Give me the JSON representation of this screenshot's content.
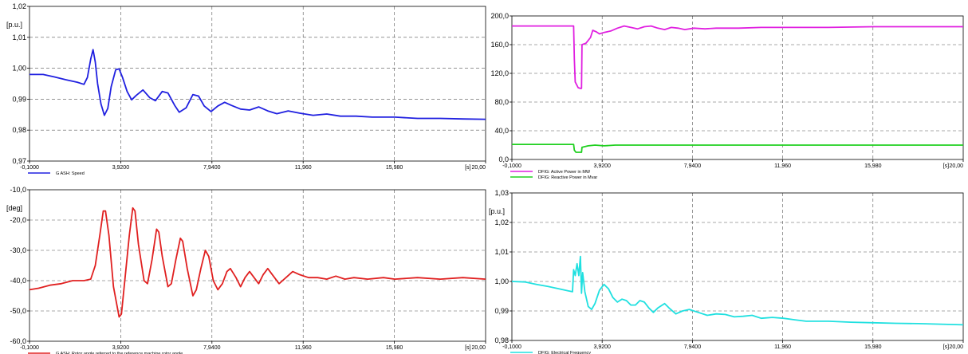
{
  "chart_data": [
    {
      "type": "line",
      "xlim": [
        -0.1,
        20.0
      ],
      "ylim": [
        0.97,
        1.02
      ],
      "xticks": [
        "-0,1000",
        "3,9200",
        "7,9400",
        "11,960",
        "15,980",
        "20,00"
      ],
      "yticks": [
        "0,97",
        "0,98",
        "0,99",
        "1,00",
        "1,01",
        "1,02"
      ],
      "x_unit": "[s]",
      "y_unit": "[p.u.]",
      "grid": true,
      "legend": "bottom-left",
      "series": [
        {
          "name": "G ASH: Speed",
          "color": "#2020e0",
          "points": [
            [
              -0.1,
              0.998
            ],
            [
              0.5,
              0.998
            ],
            [
              1.0,
              0.9972
            ],
            [
              1.5,
              0.9963
            ],
            [
              2.0,
              0.9955
            ],
            [
              2.3,
              0.9948
            ],
            [
              2.45,
              0.997
            ],
            [
              2.6,
              1.003
            ],
            [
              2.7,
              1.006
            ],
            [
              2.8,
              1.002
            ],
            [
              2.9,
              0.995
            ],
            [
              3.05,
              0.9885
            ],
            [
              3.2,
              0.9848
            ],
            [
              3.35,
              0.987
            ],
            [
              3.5,
              0.994
            ],
            [
              3.7,
              0.9995
            ],
            [
              3.85,
              0.9998
            ],
            [
              4.0,
              0.997
            ],
            [
              4.2,
              0.9925
            ],
            [
              4.4,
              0.9898
            ],
            [
              4.6,
              0.9912
            ],
            [
              4.9,
              0.993
            ],
            [
              5.2,
              0.9905
            ],
            [
              5.45,
              0.9895
            ],
            [
              5.75,
              0.9925
            ],
            [
              6.0,
              0.992
            ],
            [
              6.3,
              0.988
            ],
            [
              6.5,
              0.9858
            ],
            [
              6.8,
              0.9872
            ],
            [
              7.1,
              0.9915
            ],
            [
              7.35,
              0.991
            ],
            [
              7.6,
              0.9878
            ],
            [
              7.9,
              0.986
            ],
            [
              8.2,
              0.9878
            ],
            [
              8.5,
              0.989
            ],
            [
              8.8,
              0.988
            ],
            [
              9.2,
              0.9868
            ],
            [
              9.6,
              0.9865
            ],
            [
              10.0,
              0.9875
            ],
            [
              10.4,
              0.9862
            ],
            [
              10.8,
              0.9853
            ],
            [
              11.3,
              0.9862
            ],
            [
              11.8,
              0.9855
            ],
            [
              12.4,
              0.9848
            ],
            [
              13.0,
              0.9852
            ],
            [
              13.6,
              0.9845
            ],
            [
              14.3,
              0.9845
            ],
            [
              15.0,
              0.9842
            ],
            [
              16.0,
              0.9842
            ],
            [
              17.0,
              0.9838
            ],
            [
              18.0,
              0.9838
            ],
            [
              19.0,
              0.9836
            ],
            [
              20.0,
              0.9835
            ]
          ]
        }
      ]
    },
    {
      "type": "line",
      "xlim": [
        -0.1,
        20.0
      ],
      "ylim": [
        0,
        200
      ],
      "xticks": [
        "-0,1000",
        "3,9200",
        "7,9400",
        "11,960",
        "15,980",
        "20,00"
      ],
      "yticks": [
        "0,0",
        "40,0",
        "80,0",
        "120,0",
        "160,0",
        "200,0"
      ],
      "x_unit": "[s]",
      "y_unit": "",
      "grid": true,
      "legend": "bottom-left",
      "series": [
        {
          "name": "DFIG: Active Power in MW",
          "color": "#e020e0",
          "points": [
            [
              -0.1,
              186
            ],
            [
              1.0,
              186
            ],
            [
              2.0,
              186
            ],
            [
              2.65,
              186
            ],
            [
              2.68,
              140
            ],
            [
              2.72,
              108
            ],
            [
              2.85,
              100
            ],
            [
              2.95,
              99
            ],
            [
              3.0,
              99
            ],
            [
              3.02,
              160
            ],
            [
              3.2,
              162
            ],
            [
              3.4,
              170
            ],
            [
              3.5,
              180
            ],
            [
              3.65,
              178
            ],
            [
              3.8,
              175
            ],
            [
              4.0,
              177
            ],
            [
              4.3,
              179
            ],
            [
              4.6,
              183
            ],
            [
              4.9,
              186
            ],
            [
              5.2,
              184
            ],
            [
              5.5,
              182
            ],
            [
              5.8,
              185
            ],
            [
              6.1,
              186
            ],
            [
              6.4,
              183
            ],
            [
              6.7,
              181
            ],
            [
              7.0,
              184
            ],
            [
              7.3,
              183
            ],
            [
              7.6,
              181
            ],
            [
              8.0,
              183
            ],
            [
              8.5,
              182
            ],
            [
              9.0,
              183
            ],
            [
              10.0,
              183
            ],
            [
              11.0,
              184
            ],
            [
              12.0,
              184
            ],
            [
              14.0,
              184
            ],
            [
              16.0,
              185
            ],
            [
              18.0,
              185
            ],
            [
              20.0,
              185
            ]
          ]
        },
        {
          "name": "DFIG: Reactive Power in Mvar",
          "color": "#20d020",
          "points": [
            [
              -0.1,
              21
            ],
            [
              1.0,
              21
            ],
            [
              2.0,
              21
            ],
            [
              2.65,
              21
            ],
            [
              2.68,
              13
            ],
            [
              2.75,
              10
            ],
            [
              3.0,
              10
            ],
            [
              3.02,
              17
            ],
            [
              3.3,
              19
            ],
            [
              3.6,
              20
            ],
            [
              4.0,
              19
            ],
            [
              4.5,
              20
            ],
            [
              5.0,
              20
            ],
            [
              6.0,
              20
            ],
            [
              8.0,
              20
            ],
            [
              10.0,
              20
            ],
            [
              14.0,
              20
            ],
            [
              20.0,
              20
            ]
          ]
        }
      ]
    },
    {
      "type": "line",
      "xlim": [
        -0.1,
        20.0
      ],
      "ylim": [
        -60,
        -10
      ],
      "xticks": [
        "-0,1000",
        "3,9200",
        "7,9400",
        "11,960",
        "15,980",
        "20,00"
      ],
      "yticks": [
        "-60,0",
        "-50,0",
        "-40,0",
        "-30,0",
        "-20,0",
        "-10,0"
      ],
      "x_unit": "[s]",
      "y_unit": "[deg]",
      "grid": true,
      "legend": "bottom-left",
      "series": [
        {
          "name": "G ASH: Rotor angle referred to the reference machine rotor angle",
          "color": "#e02020",
          "points": [
            [
              -0.1,
              -43
            ],
            [
              0.3,
              -42.5
            ],
            [
              0.8,
              -41.5
            ],
            [
              1.3,
              -41
            ],
            [
              1.8,
              -40
            ],
            [
              2.3,
              -40
            ],
            [
              2.6,
              -39.5
            ],
            [
              2.8,
              -35
            ],
            [
              3.0,
              -25
            ],
            [
              3.15,
              -17
            ],
            [
              3.25,
              -17
            ],
            [
              3.4,
              -25
            ],
            [
              3.6,
              -42
            ],
            [
              3.85,
              -52
            ],
            [
              3.95,
              -51
            ],
            [
              4.1,
              -40
            ],
            [
              4.3,
              -25
            ],
            [
              4.45,
              -16
            ],
            [
              4.55,
              -17
            ],
            [
              4.7,
              -28
            ],
            [
              4.95,
              -40
            ],
            [
              5.1,
              -41
            ],
            [
              5.3,
              -33
            ],
            [
              5.5,
              -23
            ],
            [
              5.6,
              -24
            ],
            [
              5.75,
              -32
            ],
            [
              6.0,
              -42
            ],
            [
              6.15,
              -41
            ],
            [
              6.35,
              -33
            ],
            [
              6.55,
              -26
            ],
            [
              6.65,
              -27
            ],
            [
              6.85,
              -36
            ],
            [
              7.1,
              -45
            ],
            [
              7.25,
              -43
            ],
            [
              7.45,
              -36
            ],
            [
              7.65,
              -30
            ],
            [
              7.8,
              -32
            ],
            [
              8.0,
              -40
            ],
            [
              8.2,
              -43
            ],
            [
              8.4,
              -41
            ],
            [
              8.6,
              -37
            ],
            [
              8.75,
              -36
            ],
            [
              9.0,
              -39
            ],
            [
              9.2,
              -42
            ],
            [
              9.4,
              -39
            ],
            [
              9.6,
              -37
            ],
            [
              9.8,
              -39
            ],
            [
              10.0,
              -41
            ],
            [
              10.2,
              -38
            ],
            [
              10.4,
              -36
            ],
            [
              10.6,
              -38
            ],
            [
              10.9,
              -41
            ],
            [
              11.2,
              -39
            ],
            [
              11.5,
              -37
            ],
            [
              11.8,
              -38
            ],
            [
              12.2,
              -39
            ],
            [
              12.6,
              -39
            ],
            [
              13.0,
              -39.5
            ],
            [
              13.4,
              -38.5
            ],
            [
              13.8,
              -39.5
            ],
            [
              14.2,
              -39
            ],
            [
              14.8,
              -39.5
            ],
            [
              15.5,
              -39
            ],
            [
              16.0,
              -39.5
            ],
            [
              17.0,
              -39
            ],
            [
              18.0,
              -39.5
            ],
            [
              19.0,
              -39
            ],
            [
              20.0,
              -39.5
            ]
          ]
        }
      ]
    },
    {
      "type": "line",
      "xlim": [
        -0.1,
        20.0
      ],
      "ylim": [
        0.98,
        1.03
      ],
      "xticks": [
        "-0,1000",
        "3,9200",
        "7,9400",
        "11,960",
        "15,980",
        "20,00"
      ],
      "yticks": [
        "0,98",
        "0,99",
        "1,00",
        "1,01",
        "1,02",
        "1,03"
      ],
      "x_unit": "[s]",
      "y_unit": "[p.u.]",
      "grid": true,
      "legend": "bottom-left",
      "series": [
        {
          "name": "DFIG: Electrical Frequency",
          "color": "#20e0e0",
          "points": [
            [
              -0.1,
              1.0
            ],
            [
              0.5,
              0.9998
            ],
            [
              1.0,
              0.999
            ],
            [
              1.5,
              0.9983
            ],
            [
              2.0,
              0.9975
            ],
            [
              2.4,
              0.9968
            ],
            [
              2.6,
              0.9965
            ],
            [
              2.65,
              1.004
            ],
            [
              2.72,
              1.002
            ],
            [
              2.8,
              1.006
            ],
            [
              2.88,
              1.002
            ],
            [
              2.95,
              1.0085
            ],
            [
              3.0,
              0.996
            ],
            [
              3.05,
              1.003
            ],
            [
              3.15,
              0.9965
            ],
            [
              3.3,
              0.9915
            ],
            [
              3.45,
              0.9905
            ],
            [
              3.6,
              0.9925
            ],
            [
              3.8,
              0.997
            ],
            [
              4.0,
              0.999
            ],
            [
              4.2,
              0.9975
            ],
            [
              4.4,
              0.9945
            ],
            [
              4.6,
              0.993
            ],
            [
              4.8,
              0.994
            ],
            [
              5.0,
              0.9935
            ],
            [
              5.2,
              0.992
            ],
            [
              5.4,
              0.992
            ],
            [
              5.6,
              0.9935
            ],
            [
              5.8,
              0.993
            ],
            [
              6.0,
              0.991
            ],
            [
              6.2,
              0.9895
            ],
            [
              6.4,
              0.991
            ],
            [
              6.7,
              0.9925
            ],
            [
              6.9,
              0.991
            ],
            [
              7.2,
              0.989
            ],
            [
              7.5,
              0.99
            ],
            [
              7.8,
              0.9905
            ],
            [
              8.2,
              0.9895
            ],
            [
              8.6,
              0.9885
            ],
            [
              9.0,
              0.989
            ],
            [
              9.4,
              0.9888
            ],
            [
              9.8,
              0.988
            ],
            [
              10.2,
              0.9882
            ],
            [
              10.6,
              0.9885
            ],
            [
              11.0,
              0.9875
            ],
            [
              11.5,
              0.9878
            ],
            [
              12.0,
              0.9875
            ],
            [
              12.5,
              0.987
            ],
            [
              13.0,
              0.9865
            ],
            [
              14.0,
              0.9865
            ],
            [
              15.0,
              0.9862
            ],
            [
              16.0,
              0.986
            ],
            [
              17.0,
              0.9858
            ],
            [
              18.0,
              0.9857
            ],
            [
              19.0,
              0.9855
            ],
            [
              20.0,
              0.9853
            ]
          ]
        }
      ]
    }
  ]
}
